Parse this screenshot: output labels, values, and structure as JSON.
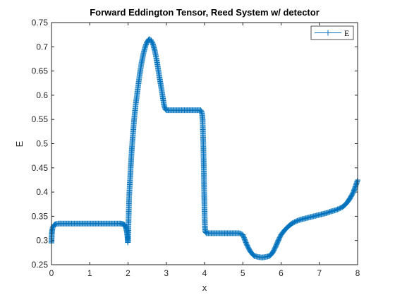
{
  "chart_data": {
    "type": "line",
    "title": "Forward Eddington Tensor, Reed System w/ detector",
    "xlabel": "x",
    "ylabel": "E",
    "xlim": [
      0,
      8
    ],
    "ylim": [
      0.25,
      0.75
    ],
    "xticks": [
      "0",
      "1",
      "2",
      "3",
      "4",
      "5",
      "6",
      "7",
      "8"
    ],
    "yticks": [
      "0.25",
      "0.3",
      "0.35",
      "0.4",
      "0.45",
      "0.5",
      "0.55",
      "0.6",
      "0.65",
      "0.7",
      "0.75"
    ],
    "grid": false,
    "legend_position": "top-right",
    "marker": "+",
    "color": "#0072BD",
    "series": [
      {
        "name": "E",
        "points": [
          [
            0.0,
            0.295
          ],
          [
            0.005,
            0.305
          ],
          [
            0.01,
            0.315
          ],
          [
            0.02,
            0.322
          ],
          [
            0.03,
            0.326
          ],
          [
            0.05,
            0.33
          ],
          [
            0.08,
            0.333
          ],
          [
            0.12,
            0.334
          ],
          [
            0.2,
            0.335
          ],
          [
            0.3,
            0.335
          ],
          [
            0.4,
            0.335
          ],
          [
            0.5,
            0.335
          ],
          [
            0.6,
            0.335
          ],
          [
            0.7,
            0.335
          ],
          [
            0.8,
            0.335
          ],
          [
            0.9,
            0.335
          ],
          [
            1.0,
            0.335
          ],
          [
            1.1,
            0.335
          ],
          [
            1.2,
            0.335
          ],
          [
            1.3,
            0.335
          ],
          [
            1.4,
            0.335
          ],
          [
            1.5,
            0.335
          ],
          [
            1.6,
            0.335
          ],
          [
            1.7,
            0.335
          ],
          [
            1.8,
            0.335
          ],
          [
            1.86,
            0.334
          ],
          [
            1.9,
            0.333
          ],
          [
            1.93,
            0.33
          ],
          [
            1.95,
            0.325
          ],
          [
            1.97,
            0.318
          ],
          [
            1.985,
            0.308
          ],
          [
            1.995,
            0.296
          ],
          [
            2.0,
            0.3
          ],
          [
            2.01,
            0.33
          ],
          [
            2.02,
            0.36
          ],
          [
            2.03,
            0.39
          ],
          [
            2.05,
            0.42
          ],
          [
            2.07,
            0.45
          ],
          [
            2.1,
            0.49
          ],
          [
            2.13,
            0.52
          ],
          [
            2.16,
            0.55
          ],
          [
            2.2,
            0.58
          ],
          [
            2.25,
            0.61
          ],
          [
            2.3,
            0.64
          ],
          [
            2.35,
            0.665
          ],
          [
            2.4,
            0.685
          ],
          [
            2.45,
            0.7
          ],
          [
            2.5,
            0.71
          ],
          [
            2.55,
            0.716
          ],
          [
            2.6,
            0.714
          ],
          [
            2.65,
            0.706
          ],
          [
            2.7,
            0.692
          ],
          [
            2.75,
            0.672
          ],
          [
            2.8,
            0.648
          ],
          [
            2.85,
            0.624
          ],
          [
            2.9,
            0.6
          ],
          [
            2.94,
            0.58
          ],
          [
            2.97,
            0.572
          ],
          [
            3.0,
            0.569
          ],
          [
            3.1,
            0.569
          ],
          [
            3.2,
            0.569
          ],
          [
            3.3,
            0.569
          ],
          [
            3.4,
            0.569
          ],
          [
            3.5,
            0.569
          ],
          [
            3.6,
            0.569
          ],
          [
            3.7,
            0.569
          ],
          [
            3.8,
            0.569
          ],
          [
            3.9,
            0.569
          ],
          [
            3.93,
            0.565
          ],
          [
            3.95,
            0.55
          ],
          [
            3.96,
            0.52
          ],
          [
            3.97,
            0.49
          ],
          [
            3.98,
            0.45
          ],
          [
            3.99,
            0.4
          ],
          [
            4.0,
            0.36
          ],
          [
            4.01,
            0.33
          ],
          [
            4.02,
            0.318
          ],
          [
            4.05,
            0.315
          ],
          [
            4.1,
            0.315
          ],
          [
            4.2,
            0.315
          ],
          [
            4.3,
            0.315
          ],
          [
            4.4,
            0.315
          ],
          [
            4.5,
            0.315
          ],
          [
            4.6,
            0.315
          ],
          [
            4.7,
            0.315
          ],
          [
            4.8,
            0.315
          ],
          [
            4.9,
            0.315
          ],
          [
            4.95,
            0.314
          ],
          [
            5.0,
            0.312
          ],
          [
            5.05,
            0.302
          ],
          [
            5.1,
            0.292
          ],
          [
            5.15,
            0.284
          ],
          [
            5.2,
            0.277
          ],
          [
            5.25,
            0.272
          ],
          [
            5.3,
            0.268
          ],
          [
            5.4,
            0.266
          ],
          [
            5.5,
            0.265
          ],
          [
            5.6,
            0.266
          ],
          [
            5.7,
            0.268
          ],
          [
            5.75,
            0.272
          ],
          [
            5.8,
            0.278
          ],
          [
            5.85,
            0.286
          ],
          [
            5.9,
            0.295
          ],
          [
            5.95,
            0.304
          ],
          [
            6.0,
            0.312
          ],
          [
            6.1,
            0.322
          ],
          [
            6.2,
            0.33
          ],
          [
            6.3,
            0.336
          ],
          [
            6.4,
            0.34
          ],
          [
            6.5,
            0.343
          ],
          [
            6.6,
            0.345
          ],
          [
            6.7,
            0.347
          ],
          [
            6.8,
            0.349
          ],
          [
            6.9,
            0.351
          ],
          [
            7.0,
            0.353
          ],
          [
            7.1,
            0.355
          ],
          [
            7.2,
            0.357
          ],
          [
            7.3,
            0.36
          ],
          [
            7.4,
            0.362
          ],
          [
            7.5,
            0.365
          ],
          [
            7.6,
            0.369
          ],
          [
            7.65,
            0.372
          ],
          [
            7.7,
            0.376
          ],
          [
            7.75,
            0.381
          ],
          [
            7.8,
            0.387
          ],
          [
            7.85,
            0.394
          ],
          [
            7.9,
            0.402
          ],
          [
            7.95,
            0.413
          ],
          [
            8.0,
            0.425
          ]
        ]
      }
    ]
  }
}
